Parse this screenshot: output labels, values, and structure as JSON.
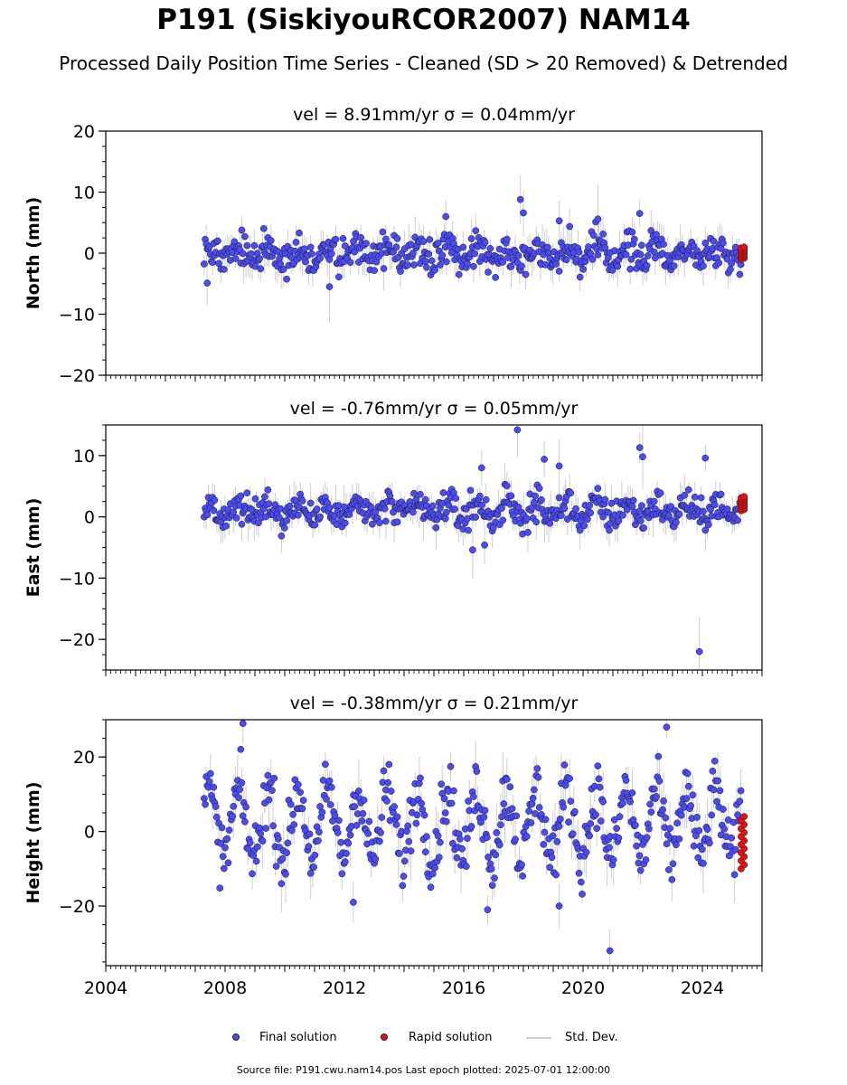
{
  "title": "P191 (SiskiyouRCOR2007) NAM14",
  "subtitle": "Processed Daily Position Time Series - Cleaned (SD > 20 Removed) & Detrended",
  "legend": {
    "final": "Final solution",
    "rapid": "Rapid solution",
    "std": "Std. Dev."
  },
  "source_note": "Source file: P191.cwu.nam14.pos  Last epoch plotted: 2025-07-01 12:00:00",
  "colors": {
    "final": "#4b4bf5",
    "rapid": "#e81010",
    "std": "#bdbdbd",
    "marker_edge": "#1a1a1a"
  },
  "chart_data": [
    {
      "type": "scatter",
      "panel": "north",
      "title": "vel = 8.91mm/yr   σ = 0.04mm/yr",
      "ylabel": "North (mm)",
      "xlim": [
        2004,
        2026
      ],
      "ylim": [
        -20,
        20
      ],
      "yticks": [
        -20,
        -10,
        0,
        10,
        20
      ],
      "xticks": [
        2004,
        2008,
        2012,
        2016,
        2020,
        2024
      ],
      "show_xtick_labels": false,
      "series": [
        {
          "name": "Final solution",
          "x_range": [
            2007.3,
            2025.3
          ],
          "envelope_mm": [
            -4,
            4
          ],
          "seasonal_amplitude_mm": 1.0,
          "outliers": [
            {
              "x": 2017.9,
              "y": 8.8
            },
            {
              "x": 2018.0,
              "y": 6.6
            },
            {
              "x": 2021.9,
              "y": 6.5
            },
            {
              "x": 2019.2,
              "y": 5.3
            },
            {
              "x": 2020.5,
              "y": 5.6
            },
            {
              "x": 2015.4,
              "y": 6.0
            },
            {
              "x": 2011.5,
              "y": -5.5
            },
            {
              "x": 2007.4,
              "y": -4.9
            }
          ]
        },
        {
          "name": "Rapid solution",
          "x_range": [
            2025.3,
            2025.5
          ],
          "y_range": [
            -1,
            1
          ]
        }
      ]
    },
    {
      "type": "scatter",
      "panel": "east",
      "title": "vel = -0.76mm/yr   σ = 0.05mm/yr",
      "ylabel": "East (mm)",
      "xlim": [
        2004,
        2026
      ],
      "ylim": [
        -25,
        15
      ],
      "yticks": [
        -20,
        -10,
        0,
        10
      ],
      "xticks": [
        2004,
        2008,
        2012,
        2016,
        2020,
        2024
      ],
      "show_xtick_labels": false,
      "series": [
        {
          "name": "Final solution",
          "x_range": [
            2007.3,
            2025.3
          ],
          "envelope_mm": [
            -3,
            5
          ],
          "seasonal_amplitude_mm": 1.2,
          "outliers": [
            {
              "x": 2017.8,
              "y": 14.2
            },
            {
              "x": 2021.9,
              "y": 11.3
            },
            {
              "x": 2022.0,
              "y": 9.8
            },
            {
              "x": 2024.1,
              "y": 9.6
            },
            {
              "x": 2018.7,
              "y": 9.4
            },
            {
              "x": 2019.2,
              "y": 8.3
            },
            {
              "x": 2016.6,
              "y": 8.0
            },
            {
              "x": 2023.9,
              "y": -22.0
            },
            {
              "x": 2016.3,
              "y": -5.4
            },
            {
              "x": 2016.7,
              "y": -4.6
            }
          ]
        },
        {
          "name": "Rapid solution",
          "x_range": [
            2025.3,
            2025.5
          ],
          "y_range": [
            1,
            3.3
          ]
        }
      ]
    },
    {
      "type": "scatter",
      "panel": "height",
      "title": "vel = -0.38mm/yr   σ = 0.21mm/yr",
      "ylabel": "Height (mm)",
      "xlim": [
        2004,
        2026
      ],
      "ylim": [
        -36,
        30
      ],
      "yticks": [
        -20,
        0,
        20
      ],
      "xticks": [
        2004,
        2008,
        2012,
        2016,
        2020,
        2024
      ],
      "xticklabels": [
        "2004",
        "2008",
        "2012",
        "2016",
        "2020",
        "2024"
      ],
      "show_xtick_labels": true,
      "series": [
        {
          "name": "Final solution",
          "x_range": [
            2007.3,
            2025.3
          ],
          "envelope_mm": [
            -16,
            20
          ],
          "seasonal_amplitude_mm": 9.0,
          "outliers": [
            {
              "x": 2008.6,
              "y": 29.0
            },
            {
              "x": 2022.8,
              "y": 28.0
            },
            {
              "x": 2020.9,
              "y": -32.0
            },
            {
              "x": 2016.8,
              "y": -21.0
            },
            {
              "x": 2019.2,
              "y": -20.0
            },
            {
              "x": 2012.3,
              "y": -19.0
            }
          ]
        },
        {
          "name": "Rapid solution",
          "x_range": [
            2025.3,
            2025.5
          ],
          "y_range": [
            -10,
            4
          ]
        }
      ]
    }
  ]
}
